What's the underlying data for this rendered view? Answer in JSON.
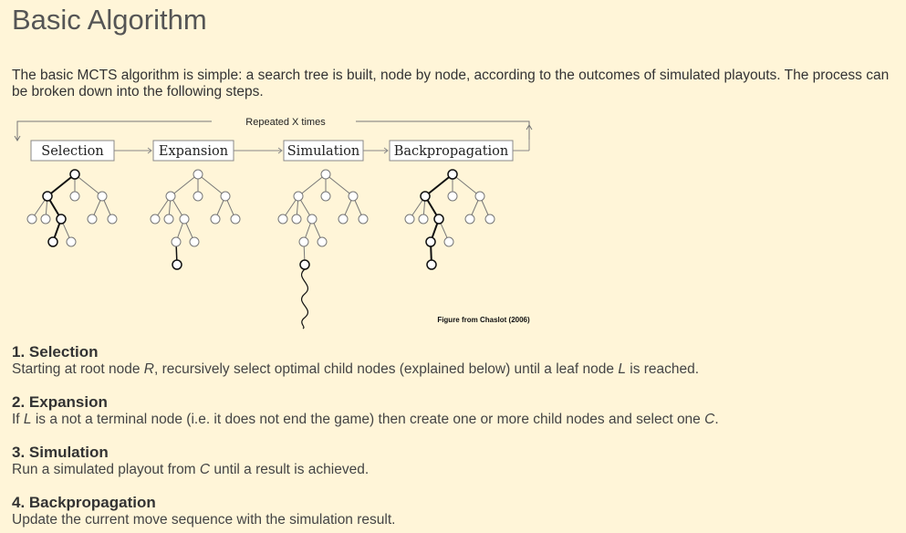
{
  "page": {
    "title": "Basic Algorithm",
    "intro": "The basic MCTS algorithm is simple: a search tree is built, node by node, according to the outcomes of simulated playouts. The process can be broken down into the following steps."
  },
  "figure": {
    "loop_label": "Repeated X times",
    "phases": [
      "Selection",
      "Expansion",
      "Simulation",
      "Backpropagation"
    ],
    "credit": "Figure from Chaslot (2006)"
  },
  "steps": [
    {
      "title": "1. Selection",
      "parts": [
        {
          "t": "Starting at root node "
        },
        {
          "t": "R",
          "i": true
        },
        {
          "t": ", recursively select optimal child nodes (explained below) until a leaf node "
        },
        {
          "t": "L",
          "i": true
        },
        {
          "t": " is reached."
        }
      ]
    },
    {
      "title": "2. Expansion",
      "parts": [
        {
          "t": "If "
        },
        {
          "t": "L",
          "i": true
        },
        {
          "t": " is a not a terminal node (i.e. it does not end the game) then create one or more child nodes and select one "
        },
        {
          "t": "C",
          "i": true
        },
        {
          "t": "."
        }
      ]
    },
    {
      "title": "3. Simulation",
      "parts": [
        {
          "t": "Run a simulated playout from "
        },
        {
          "t": "C",
          "i": true
        },
        {
          "t": " until a result is achieved."
        }
      ]
    },
    {
      "title": "4. Backpropagation",
      "parts": [
        {
          "t": "Update the current move sequence with the simulation result."
        }
      ]
    }
  ]
}
